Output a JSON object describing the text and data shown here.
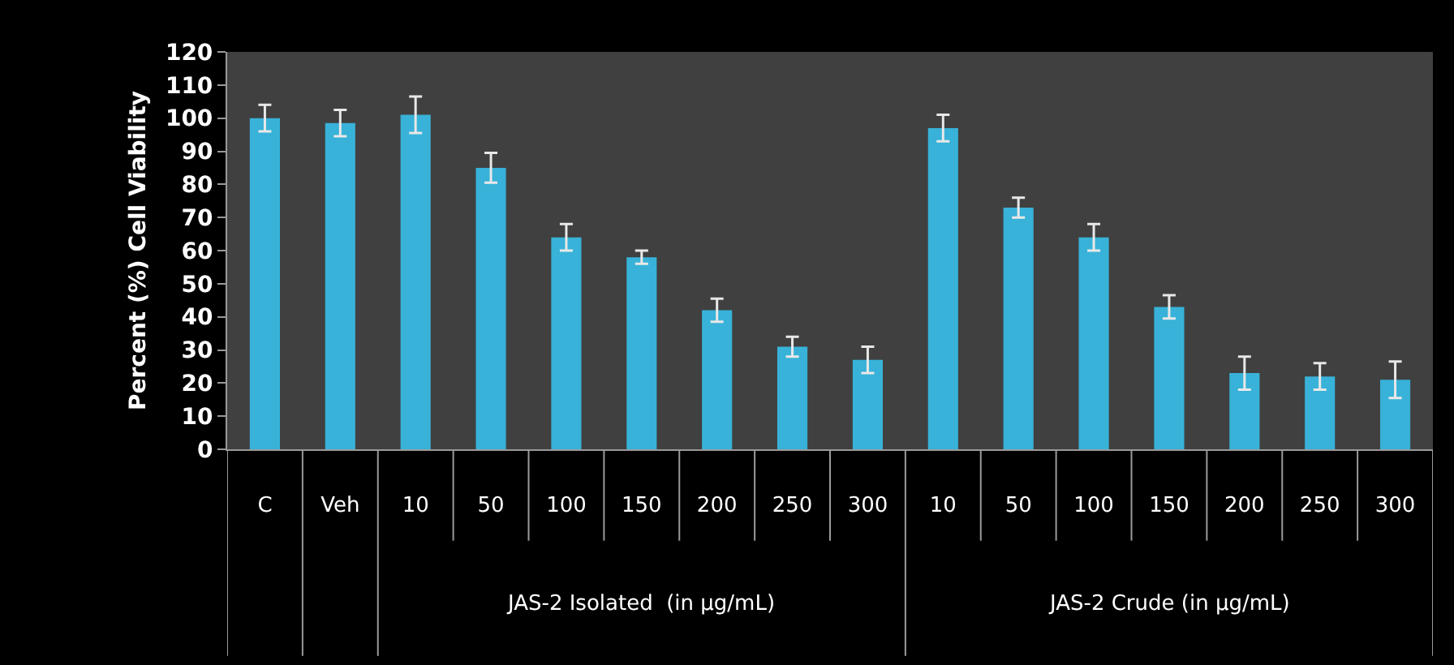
{
  "chart_data": {
    "type": "bar",
    "ylabel": "Percent (%) Cell Viability",
    "categories": [
      "C",
      "Veh",
      "10",
      "50",
      "100",
      "150",
      "200",
      "250",
      "300",
      "10",
      "50",
      "100",
      "150",
      "200",
      "250",
      "300"
    ],
    "values": [
      100,
      98.5,
      101,
      85,
      64,
      58,
      42,
      31,
      27,
      97,
      73,
      64,
      43,
      23,
      22,
      21
    ],
    "errors": [
      4,
      4,
      5.5,
      4.5,
      4,
      2,
      3.5,
      3,
      4,
      4,
      3,
      4,
      3.5,
      5,
      4,
      5.5
    ],
    "color": "#38b2d8",
    "ylim": [
      0,
      120
    ],
    "yticks": [
      0,
      10,
      20,
      30,
      40,
      50,
      60,
      70,
      80,
      90,
      100,
      110,
      120
    ],
    "grid": false,
    "annotations": [
      "JAS-2 Isolated  (in µg/mL)",
      "JAS-2 Crude (in µg/mL)"
    ]
  }
}
